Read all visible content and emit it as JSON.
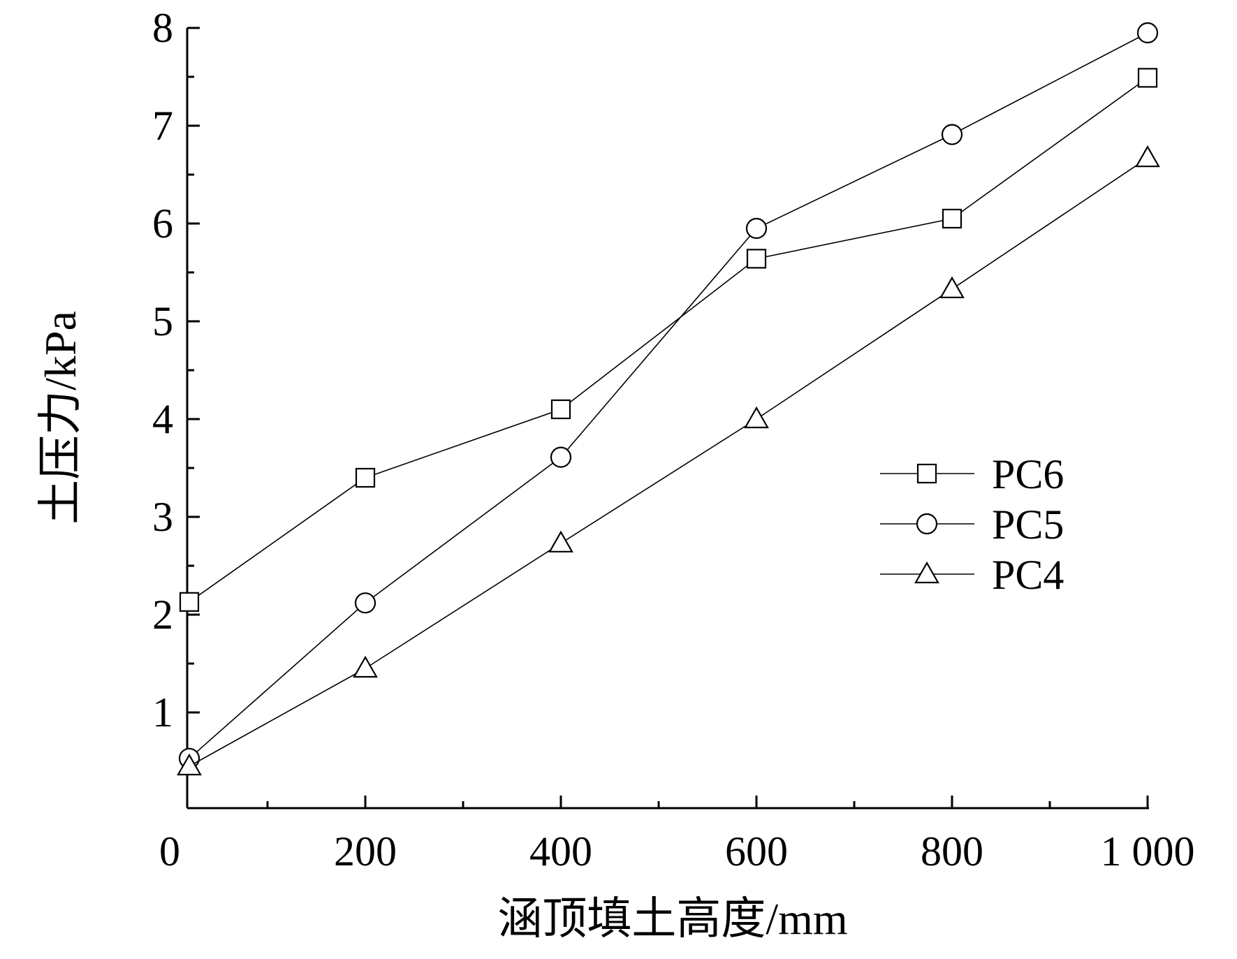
{
  "chart_data": {
    "type": "line",
    "title": "",
    "xlabel": "涵顶填土高度/mm",
    "ylabel": "土压力/kPa",
    "xlim": [
      0,
      1000
    ],
    "ylim": [
      0,
      8
    ],
    "x_ticks": [
      0,
      200,
      400,
      600,
      800,
      1000
    ],
    "x_tick_labels": [
      "0",
      "200",
      "400",
      "600",
      "800",
      "1 000"
    ],
    "y_ticks": [
      1,
      2,
      3,
      4,
      5,
      6,
      7,
      8
    ],
    "y_tick_labels": [
      "1",
      "2",
      "3",
      "4",
      "5",
      "6",
      "7",
      "8"
    ],
    "grid": false,
    "legend_position": "right",
    "x": [
      20,
      200,
      400,
      600,
      800,
      1000
    ],
    "series": [
      {
        "name": "PC6",
        "marker": "square",
        "values": [
          2.13,
          3.4,
          4.1,
          5.64,
          6.05,
          7.49
        ]
      },
      {
        "name": "PC5",
        "marker": "circle",
        "values": [
          0.53,
          2.12,
          3.61,
          5.95,
          6.91,
          7.95
        ]
      },
      {
        "name": "PC4",
        "marker": "triangle",
        "values": [
          0.45,
          1.45,
          2.73,
          4.0,
          5.33,
          6.67
        ]
      }
    ]
  }
}
